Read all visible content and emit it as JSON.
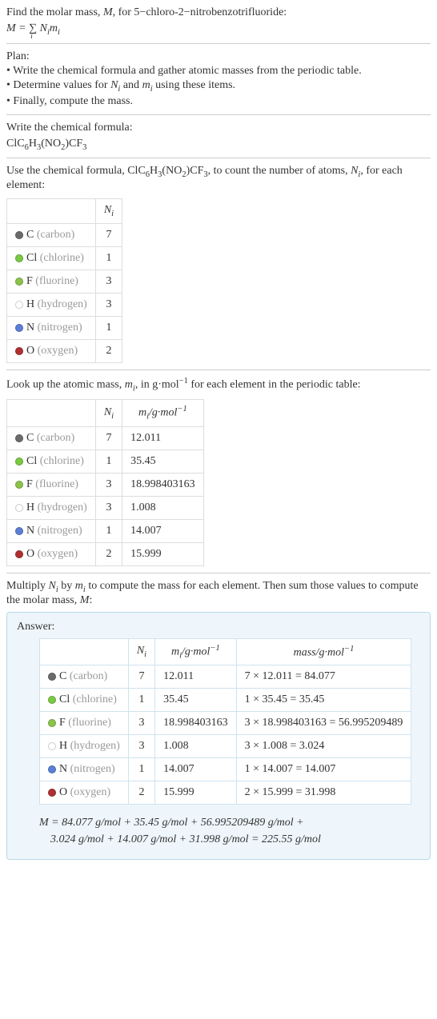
{
  "intro": {
    "line1_a": "Find the molar mass, ",
    "line1_M": "M",
    "line1_b": ", for 5−chloro-2−nitrobenzotrifluoride:",
    "formula_plain": "M = ∑ Nᵢmᵢ",
    "formula_sub": "i"
  },
  "plan": {
    "heading": "Plan:",
    "items": [
      "• Write the chemical formula and gather atomic masses from the periodic table.",
      "• Determine values for Nᵢ and mᵢ using these items.",
      "• Finally, compute the mass."
    ]
  },
  "step1": {
    "text": "Write the chemical formula:",
    "formula_html": "ClC₆H₃(NO₂)CF₃"
  },
  "step2": {
    "text_a": "Use the chemical formula, ",
    "formula": "ClC₆H₃(NO₂)CF₃",
    "text_b": ", to count the number of atoms, ",
    "Ni": "Nᵢ",
    "text_c": ", for each element:"
  },
  "t1": {
    "h2": "Nᵢ",
    "rows": [
      {
        "dot": "#6b6b6b",
        "sym": "C",
        "name": "(carbon)",
        "n": "7"
      },
      {
        "dot": "#7ac943",
        "sym": "Cl",
        "name": "(chlorine)",
        "n": "1"
      },
      {
        "dot": "#8bc34a",
        "sym": "F",
        "name": "(fluorine)",
        "n": "3"
      },
      {
        "dot": "#ffffff",
        "sym": "H",
        "name": "(hydrogen)",
        "n": "3"
      },
      {
        "dot": "#5b7fd6",
        "sym": "N",
        "name": "(nitrogen)",
        "n": "1"
      },
      {
        "dot": "#b03030",
        "sym": "O",
        "name": "(oxygen)",
        "n": "2"
      }
    ]
  },
  "step3": {
    "text_a": "Look up the atomic mass, ",
    "mi": "mᵢ",
    "text_b": ", in g·mol",
    "exp": "−1",
    "text_c": " for each element in the periodic table:"
  },
  "t2": {
    "h2": "Nᵢ",
    "h3_a": "mᵢ/g·mol",
    "h3_exp": "−1",
    "rows": [
      {
        "dot": "#6b6b6b",
        "sym": "C",
        "name": "(carbon)",
        "n": "7",
        "m": "12.011"
      },
      {
        "dot": "#7ac943",
        "sym": "Cl",
        "name": "(chlorine)",
        "n": "1",
        "m": "35.45"
      },
      {
        "dot": "#8bc34a",
        "sym": "F",
        "name": "(fluorine)",
        "n": "3",
        "m": "18.998403163"
      },
      {
        "dot": "#ffffff",
        "sym": "H",
        "name": "(hydrogen)",
        "n": "3",
        "m": "1.008"
      },
      {
        "dot": "#5b7fd6",
        "sym": "N",
        "name": "(nitrogen)",
        "n": "1",
        "m": "14.007"
      },
      {
        "dot": "#b03030",
        "sym": "O",
        "name": "(oxygen)",
        "n": "2",
        "m": "15.999"
      }
    ]
  },
  "step4": {
    "text": "Multiply Nᵢ by mᵢ to compute the mass for each element. Then sum those values to compute the molar mass, M:"
  },
  "answer": {
    "heading": "Answer:",
    "h2": "Nᵢ",
    "h3_a": "mᵢ/g·mol",
    "h3_exp": "−1",
    "h4_a": "mass/g·mol",
    "h4_exp": "−1",
    "rows": [
      {
        "dot": "#6b6b6b",
        "sym": "C",
        "name": "(carbon)",
        "n": "7",
        "m": "12.011",
        "mass": "7 × 12.011 = 84.077"
      },
      {
        "dot": "#7ac943",
        "sym": "Cl",
        "name": "(chlorine)",
        "n": "1",
        "m": "35.45",
        "mass": "1 × 35.45 = 35.45"
      },
      {
        "dot": "#8bc34a",
        "sym": "F",
        "name": "(fluorine)",
        "n": "3",
        "m": "18.998403163",
        "mass": "3 × 18.998403163 = 56.995209489"
      },
      {
        "dot": "#ffffff",
        "sym": "H",
        "name": "(hydrogen)",
        "n": "3",
        "m": "1.008",
        "mass": "3 × 1.008 = 3.024"
      },
      {
        "dot": "#5b7fd6",
        "sym": "N",
        "name": "(nitrogen)",
        "n": "1",
        "m": "14.007",
        "mass": "1 × 14.007 = 14.007"
      },
      {
        "dot": "#b03030",
        "sym": "O",
        "name": "(oxygen)",
        "n": "2",
        "m": "15.999",
        "mass": "2 × 15.999 = 31.998"
      }
    ],
    "final1": "M = 84.077 g/mol + 35.45 g/mol + 56.995209489 g/mol +",
    "final2": "3.024 g/mol + 14.007 g/mol + 31.998 g/mol = 225.55 g/mol"
  }
}
